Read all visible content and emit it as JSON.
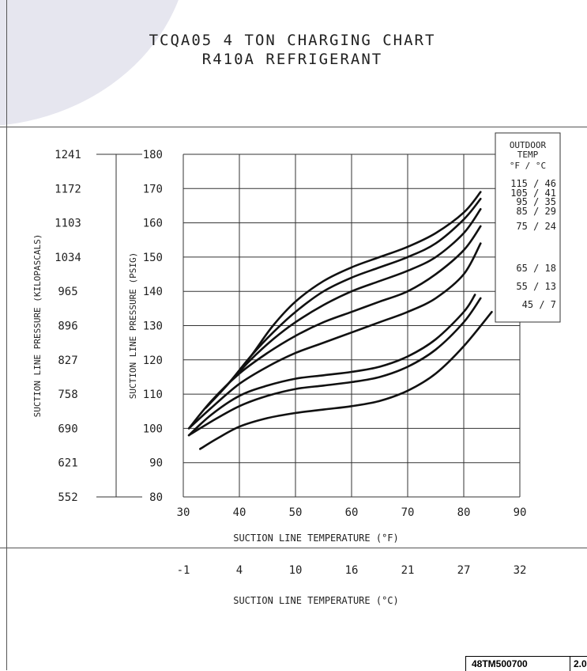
{
  "chart_data": {
    "type": "line",
    "title": "TCQA05   4 TON CHARGING CHART",
    "subtitle": "R410A REFRIGERANT",
    "xlabel": "SUCTION LINE TEMPERATURE (°F)",
    "x2label": "SUCTION LINE TEMPERATURE (°C)",
    "ylabel": "SUCTION LINE PRESSURE (PSIG)",
    "y2label": "SUCTION LINE PRESSURE (KILOPASCALS)",
    "xlim": [
      30,
      90
    ],
    "ylim": [
      80,
      180
    ],
    "grid": true,
    "x_ticks": [
      "30",
      "40",
      "50",
      "60",
      "70",
      "80",
      "90"
    ],
    "y_ticks": [
      "80",
      "90",
      "100",
      "110",
      "120",
      "130",
      "140",
      "150",
      "160",
      "170",
      "180"
    ],
    "x2_ticks": [
      "-1",
      "4",
      "10",
      "16",
      "21",
      "27",
      "32"
    ],
    "y2_ticks": [
      "552",
      "621",
      "690",
      "758",
      "827",
      "896",
      "965",
      "1034",
      "1103",
      "1172",
      "1241"
    ],
    "legend": {
      "header": [
        "OUTDOOR",
        "TEMP",
        "°F / °C"
      ],
      "entries": [
        "115 / 46",
        "105 / 41",
        "95 / 35",
        "85 / 29",
        "75 / 24",
        "65 / 18",
        "55 / 13",
        "45 / 7"
      ]
    },
    "series": [
      {
        "label": "115 / 46",
        "x": [
          34,
          38,
          42,
          46,
          50,
          55,
          60,
          65,
          70,
          75,
          80,
          83
        ],
        "y": [
          106,
          113,
          121,
          130,
          137,
          143,
          147,
          150,
          153,
          157,
          163,
          169
        ]
      },
      {
        "label": "105 / 41",
        "x": [
          34,
          38,
          42,
          46,
          50,
          55,
          60,
          65,
          70,
          75,
          80,
          83
        ],
        "y": [
          106,
          113,
          121,
          128,
          134,
          140,
          144,
          147,
          150,
          154,
          161,
          167
        ]
      },
      {
        "label": "95 / 35",
        "x": [
          34,
          38,
          42,
          46,
          50,
          55,
          60,
          65,
          70,
          75,
          80,
          83
        ],
        "y": [
          106,
          113,
          120,
          126,
          131,
          136,
          140,
          143,
          146,
          150,
          157,
          164
        ]
      },
      {
        "label": "85 / 29",
        "x": [
          31,
          35,
          40,
          45,
          50,
          55,
          60,
          65,
          70,
          75,
          80,
          83
        ],
        "y": [
          100,
          108,
          116,
          122,
          127,
          131,
          134,
          137,
          140,
          145,
          152,
          159
        ]
      },
      {
        "label": "75 / 24",
        "x": [
          31,
          35,
          40,
          45,
          50,
          55,
          60,
          65,
          70,
          75,
          80,
          83
        ],
        "y": [
          100,
          106,
          113,
          118,
          122,
          125,
          128,
          131,
          134,
          138,
          145,
          154
        ]
      },
      {
        "label": "65 / 18",
        "x": [
          31,
          35,
          40,
          45,
          50,
          55,
          60,
          65,
          70,
          75,
          80,
          82
        ],
        "y": [
          98,
          104,
          109.5,
          112.5,
          114.5,
          115.5,
          116.5,
          118,
          121,
          126,
          134,
          139
        ]
      },
      {
        "label": "55 / 13",
        "x": [
          31,
          35,
          40,
          45,
          50,
          55,
          60,
          65,
          70,
          75,
          80,
          83
        ],
        "y": [
          98,
          102,
          106.5,
          109.5,
          111.5,
          112.5,
          113.5,
          115,
          118,
          123,
          131,
          138
        ]
      },
      {
        "label": "45 / 7",
        "x": [
          33,
          36,
          40,
          45,
          50,
          55,
          60,
          65,
          70,
          75,
          80,
          85
        ],
        "y": [
          94,
          97,
          100.5,
          103,
          104.5,
          105.5,
          106.5,
          108,
          111,
          116,
          124,
          134
        ]
      }
    ]
  },
  "doc_number": "48TM500700",
  "doc_version": "2.0"
}
